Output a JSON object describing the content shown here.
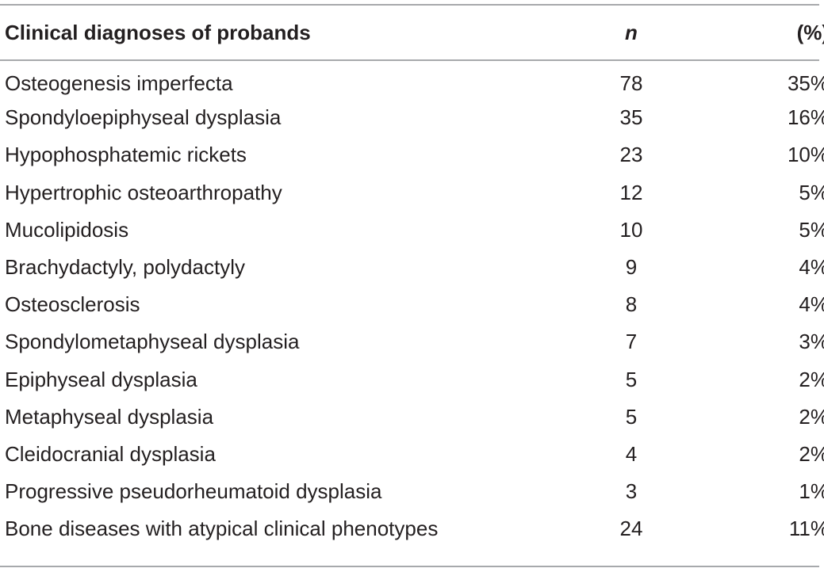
{
  "table": {
    "headers": {
      "diagnosis": "Clinical diagnoses of probands",
      "n": "n",
      "percent": "(%)"
    },
    "rows": [
      {
        "diagnosis": "Osteogenesis imperfecta",
        "n": "78",
        "percent": "35%"
      },
      {
        "diagnosis": "Spondyloepiphyseal dysplasia",
        "n": "35",
        "percent": "16%"
      },
      {
        "diagnosis": "Hypophosphatemic rickets",
        "n": "23",
        "percent": "10%"
      },
      {
        "diagnosis": "Hypertrophic osteoarthropathy",
        "n": "12",
        "percent": "5%"
      },
      {
        "diagnosis": "Mucolipidosis",
        "n": "10",
        "percent": "5%"
      },
      {
        "diagnosis": "Brachydactyly, polydactyly",
        "n": "9",
        "percent": "4%"
      },
      {
        "diagnosis": "Osteosclerosis",
        "n": "8",
        "percent": "4%"
      },
      {
        "diagnosis": "Spondylometaphyseal dysplasia",
        "n": "7",
        "percent": "3%"
      },
      {
        "diagnosis": "Epiphyseal dysplasia",
        "n": "5",
        "percent": "2%"
      },
      {
        "diagnosis": "Metaphyseal dysplasia",
        "n": "5",
        "percent": "2%"
      },
      {
        "diagnosis": "Cleidocranial dysplasia",
        "n": "4",
        "percent": "2%"
      },
      {
        "diagnosis": "Progressive pseudorheumatoid dysplasia",
        "n": "3",
        "percent": "1%"
      },
      {
        "diagnosis": "Bone diseases with atypical clinical phenotypes",
        "n": "24",
        "percent": "11%"
      }
    ]
  },
  "colors": {
    "text": "#231f20",
    "rule": "#a7a9ac"
  }
}
